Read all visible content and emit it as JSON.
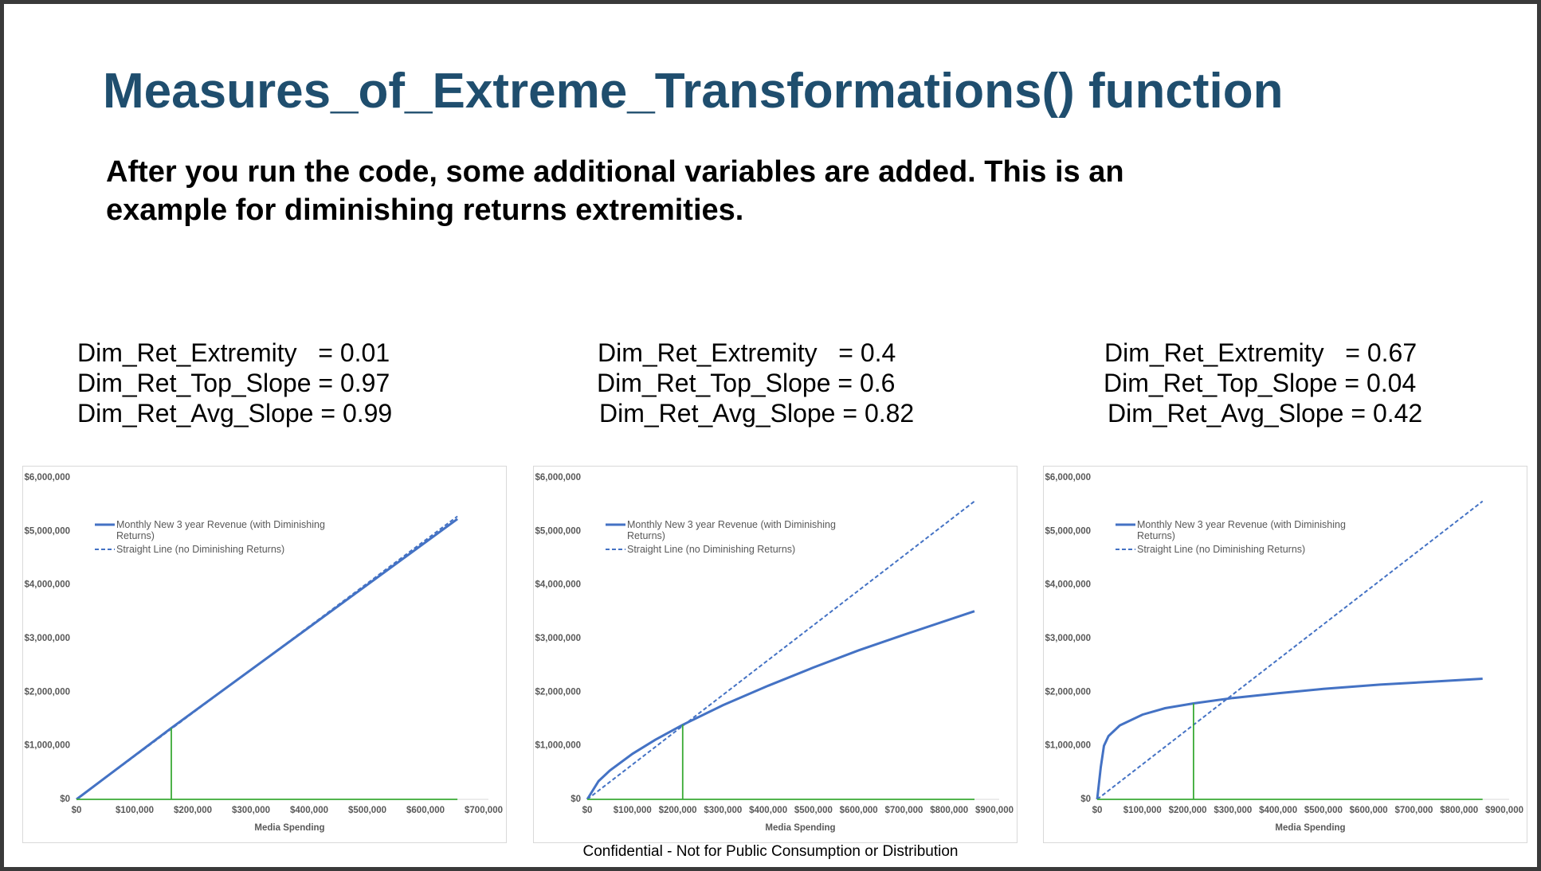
{
  "title": "Measures_of_Extreme_Transformations() function",
  "subtitle": [
    "After you run the code, some additional variables are added. This is an",
    "example for diminishing returns extremities."
  ],
  "stats": [
    [
      "Dim_Ret_Extremity   = 0.01",
      "Dim_Ret_Top_Slope = 0.97",
      "Dim_Ret_Avg_Slope = 0.99"
    ],
    [
      "Dim_Ret_Extremity   = 0.4",
      "Dim_Ret_Top_Slope = 0.6",
      "Dim_Ret_Avg_Slope = 0.82"
    ],
    [
      "Dim_Ret_Extremity   = 0.67",
      "Dim_Ret_Top_Slope = 0.04",
      "Dim_Ret_Avg_Slope = 0.42"
    ]
  ],
  "footer": "Confidential - Not for Public Consumption or Distribution",
  "chart_data": [
    {
      "type": "line",
      "x_label": "Media Spending",
      "xlim": [
        0,
        700000
      ],
      "xticks": [
        {
          "value": 0,
          "label": "$0"
        },
        {
          "value": 100000,
          "label": "$100,000"
        },
        {
          "value": 200000,
          "label": "$200,000"
        },
        {
          "value": 300000,
          "label": "$300,000"
        },
        {
          "value": 400000,
          "label": "$400,000"
        },
        {
          "value": 500000,
          "label": "$500,000"
        },
        {
          "value": 600000,
          "label": "$600,000"
        },
        {
          "value": 700000,
          "label": "$700,000"
        }
      ],
      "ylim": [
        0,
        6000000
      ],
      "yticks": [
        {
          "value": 0,
          "label": "$0"
        },
        {
          "value": 1000000,
          "label": "$1,000,000"
        },
        {
          "value": 2000000,
          "label": "$2,000,000"
        },
        {
          "value": 3000000,
          "label": "$3,000,000"
        },
        {
          "value": 4000000,
          "label": "$4,000,000"
        },
        {
          "value": 5000000,
          "label": "$5,000,000"
        },
        {
          "value": 6000000,
          "label": "$6,000,000"
        }
      ],
      "series": [
        {
          "name": "Monthly New 3 year Revenue (with Diminishing Returns)",
          "color": "#4472c4",
          "line_style": "solid",
          "x": [
            0,
            163000,
            655000
          ],
          "values": [
            0,
            1330000,
            5230000
          ]
        },
        {
          "name": "Straight Line (no Diminishing Returns)",
          "color": "#4472c4",
          "line_style": "dashed",
          "x": [
            0,
            655000
          ],
          "values": [
            0,
            5280000
          ]
        },
        {
          "color": "#3aaa35",
          "line_style": "solid",
          "x": [
            163000,
            163000
          ],
          "values": [
            0,
            1330000
          ]
        },
        {
          "color": "#3aaa35",
          "line_style": "solid",
          "x": [
            0,
            655000
          ],
          "values": [
            0,
            0
          ]
        }
      ]
    },
    {
      "type": "line",
      "x_label": "Media Spending",
      "xlim": [
        0,
        900000
      ],
      "xticks": [
        {
          "value": 0,
          "label": "$0"
        },
        {
          "value": 100000,
          "label": "$100,000"
        },
        {
          "value": 200000,
          "label": "$200,000"
        },
        {
          "value": 300000,
          "label": "$300,000"
        },
        {
          "value": 400000,
          "label": "$400,000"
        },
        {
          "value": 500000,
          "label": "$500,000"
        },
        {
          "value": 600000,
          "label": "$600,000"
        },
        {
          "value": 700000,
          "label": "$700,000"
        },
        {
          "value": 800000,
          "label": "$800,000"
        },
        {
          "value": 900000,
          "label": "$900,000"
        }
      ],
      "ylim": [
        0,
        6000000
      ],
      "yticks": [
        {
          "value": 0,
          "label": "$0"
        },
        {
          "value": 1000000,
          "label": "$1,000,000"
        },
        {
          "value": 2000000,
          "label": "$2,000,000"
        },
        {
          "value": 3000000,
          "label": "$3,000,000"
        },
        {
          "value": 4000000,
          "label": "$4,000,000"
        },
        {
          "value": 5000000,
          "label": "$5,000,000"
        },
        {
          "value": 6000000,
          "label": "$6,000,000"
        }
      ],
      "series": [
        {
          "name": "Monthly New 3 year Revenue (with Diminishing Returns)",
          "color": "#4472c4",
          "line_style": "solid",
          "x": [
            0,
            25000,
            50000,
            100000,
            150000,
            211000,
            300000,
            400000,
            500000,
            600000,
            700000,
            856000
          ],
          "values": [
            0,
            340000,
            537000,
            849000,
            1110000,
            1390000,
            1755000,
            2120000,
            2460000,
            2780000,
            3070000,
            3510000
          ]
        },
        {
          "name": "Straight Line (no Diminishing Returns)",
          "color": "#4472c4",
          "line_style": "dashed",
          "x": [
            0,
            856000
          ],
          "values": [
            0,
            5560000
          ]
        },
        {
          "color": "#3aaa35",
          "line_style": "solid",
          "x": [
            211000,
            211000
          ],
          "values": [
            0,
            1390000
          ]
        },
        {
          "color": "#3aaa35",
          "line_style": "solid",
          "x": [
            0,
            856000
          ],
          "values": [
            0,
            0
          ]
        }
      ]
    },
    {
      "type": "line",
      "x_label": "Media Spending",
      "xlim": [
        0,
        900000
      ],
      "xticks": [
        {
          "value": 0,
          "label": "$0"
        },
        {
          "value": 100000,
          "label": "$100,000"
        },
        {
          "value": 200000,
          "label": "$200,000"
        },
        {
          "value": 300000,
          "label": "$300,000"
        },
        {
          "value": 400000,
          "label": "$400,000"
        },
        {
          "value": 500000,
          "label": "$500,000"
        },
        {
          "value": 600000,
          "label": "$600,000"
        },
        {
          "value": 700000,
          "label": "$700,000"
        },
        {
          "value": 800000,
          "label": "$800,000"
        },
        {
          "value": 900000,
          "label": "$900,000"
        }
      ],
      "ylim": [
        0,
        6000000
      ],
      "yticks": [
        {
          "value": 0,
          "label": "$0"
        },
        {
          "value": 1000000,
          "label": "$1,000,000"
        },
        {
          "value": 2000000,
          "label": "$2,000,000"
        },
        {
          "value": 3000000,
          "label": "$3,000,000"
        },
        {
          "value": 4000000,
          "label": "$4,000,000"
        },
        {
          "value": 5000000,
          "label": "$5,000,000"
        },
        {
          "value": 6000000,
          "label": "$6,000,000"
        }
      ],
      "series": [
        {
          "name": "Monthly New 3 year Revenue (with Diminishing Returns)",
          "color": "#4472c4",
          "line_style": "solid",
          "x": [
            0,
            8000,
            15000,
            25000,
            50000,
            100000,
            150000,
            213000,
            300000,
            400000,
            500000,
            625000,
            750000,
            852000
          ],
          "values": [
            0,
            600000,
            1000000,
            1180000,
            1380000,
            1580000,
            1700000,
            1790000,
            1890000,
            1980000,
            2060000,
            2140000,
            2200000,
            2250000
          ]
        },
        {
          "name": "Straight Line (no Diminishing Returns)",
          "color": "#4472c4",
          "line_style": "dashed",
          "x": [
            0,
            852000
          ],
          "values": [
            0,
            5560000
          ]
        },
        {
          "color": "#3aaa35",
          "line_style": "solid",
          "x": [
            213000,
            213000
          ],
          "values": [
            0,
            1790000
          ]
        },
        {
          "color": "#3aaa35",
          "line_style": "solid",
          "x": [
            0,
            852000
          ],
          "values": [
            0,
            0
          ]
        }
      ]
    }
  ]
}
